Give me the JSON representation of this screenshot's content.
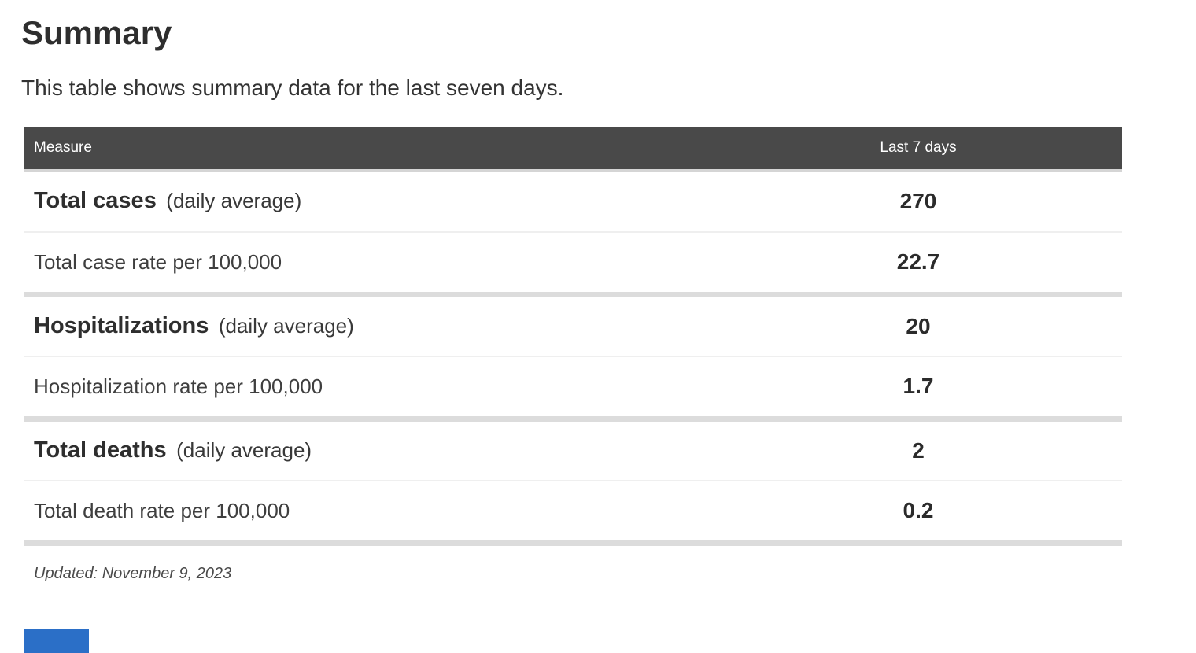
{
  "page": {
    "title": "Summary",
    "subtitle": "This table shows summary data for the last seven days.",
    "updated_note": "Updated: November 9, 2023"
  },
  "table": {
    "columns": {
      "measure": "Measure",
      "value": "Last 7 days"
    },
    "rows": [
      {
        "label": "Total cases",
        "note": "(daily average)",
        "value": "270"
      },
      {
        "label": "Total case rate per 100,000",
        "value": "22.7"
      },
      {
        "label": "Hospitalizations",
        "note": "(daily average)",
        "value": "20"
      },
      {
        "label": "Hospitalization rate per 100,000",
        "value": "1.7"
      },
      {
        "label": "Total deaths",
        "note": "(daily average)",
        "value": "2"
      },
      {
        "label": "Total death rate per 100,000",
        "value": "0.2"
      }
    ]
  },
  "colors": {
    "header_background": "#494949",
    "header_text": "#ffffff",
    "group_separator": "#dcdcdc",
    "row_separator": "#efefef",
    "blue_partial_button": "#2b6fc7"
  }
}
